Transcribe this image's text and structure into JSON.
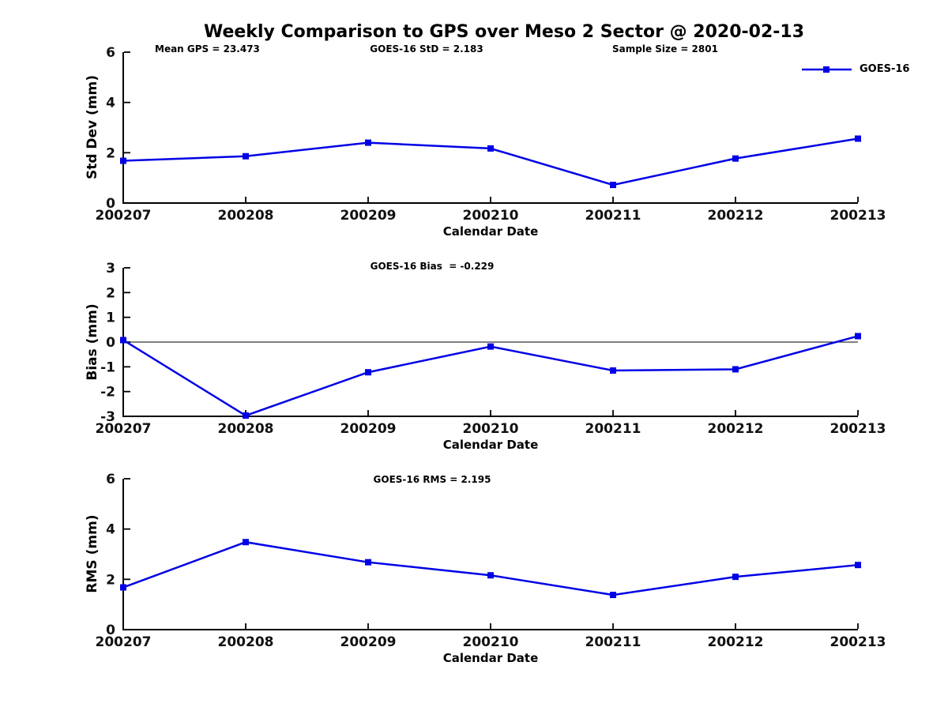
{
  "figure": {
    "title": "Weekly Comparison to GPS over Meso 2 Sector @ 2020-02-13",
    "stats": {
      "mean_gps": "Mean GPS = 23.473",
      "goes16_std": "GOES-16 StD = 2.183",
      "sample_size": "Sample Size = 2801"
    },
    "legend": {
      "label": "GOES-16",
      "marker": "square",
      "position": "top-right"
    }
  },
  "colors": {
    "series": "#0000E6",
    "axis": "#000000",
    "background": "#FFFFFF"
  },
  "chart_data": [
    {
      "type": "line",
      "title": "",
      "ylabel": "Std Dev (mm)",
      "xlabel": "Calendar Date",
      "categories": [
        "200207",
        "200208",
        "200209",
        "200210",
        "200211",
        "200212",
        "200213"
      ],
      "series": [
        {
          "name": "GOES-16",
          "values": [
            1.68,
            1.86,
            2.4,
            2.17,
            0.72,
            1.77,
            2.56
          ]
        }
      ],
      "ylim": [
        0,
        6
      ],
      "yticks": [
        0,
        2,
        4,
        6
      ],
      "grid": false,
      "zero_line": false,
      "legend_position": "top-right"
    },
    {
      "type": "line",
      "title": "GOES-16 Bias  = -0.229",
      "ylabel": "Bias (mm)",
      "xlabel": "Calendar Date",
      "categories": [
        "200207",
        "200208",
        "200209",
        "200210",
        "200211",
        "200212",
        "200213"
      ],
      "series": [
        {
          "name": "GOES-16",
          "values": [
            0.08,
            -2.97,
            -1.22,
            -0.18,
            -1.15,
            -1.1,
            0.24
          ]
        }
      ],
      "ylim": [
        -3,
        3
      ],
      "yticks": [
        -3,
        -2,
        -1,
        0,
        1,
        2,
        3
      ],
      "grid": false,
      "zero_line": true,
      "legend_position": "none"
    },
    {
      "type": "line",
      "title": "GOES-16 RMS = 2.195",
      "ylabel": "RMS (mm)",
      "xlabel": "Calendar Date",
      "categories": [
        "200207",
        "200208",
        "200209",
        "200210",
        "200211",
        "200212",
        "200213"
      ],
      "series": [
        {
          "name": "GOES-16",
          "values": [
            1.68,
            3.48,
            2.68,
            2.16,
            1.38,
            2.1,
            2.57
          ]
        }
      ],
      "ylim": [
        0,
        6
      ],
      "yticks": [
        0,
        2,
        4,
        6
      ],
      "grid": false,
      "zero_line": false,
      "legend_position": "none"
    }
  ]
}
